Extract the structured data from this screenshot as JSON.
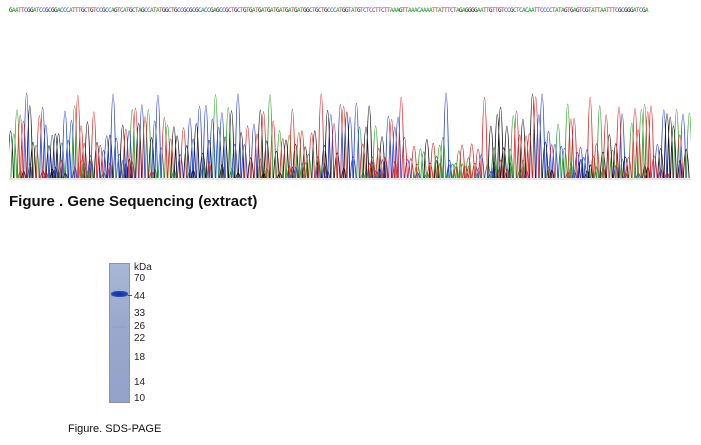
{
  "sequencing": {
    "sequence": "GAATTCGGATCCGCGGACCCATTTGCTGTCCGCCAGTCATGCTAGCCATATGGCTGCCGCGCGCACCGAGCCGCTGCTGTGATGATGATGATGATGATGGCTGCTGCCCATGGTATGTCTCCTTCTTAAAGTTAAACAAAATTATTTCTAGAGGGGAATTGTTGTCCGCTCACAATTCCCCTATAGTGAGTCGTATTAATTTCGCGGGATCGA",
    "base_colors": {
      "A": "#2aa02a",
      "C": "#1f3fd9",
      "G": "#111111",
      "T": "#e02020"
    },
    "caption": "Figure . Gene Sequencing (extract)"
  },
  "sds_page": {
    "label_unit": "kDa",
    "markers": [
      "70",
      "44",
      "33",
      "26",
      "22",
      "18",
      "14",
      "10"
    ],
    "caption": "Figure. SDS-PAGE"
  }
}
